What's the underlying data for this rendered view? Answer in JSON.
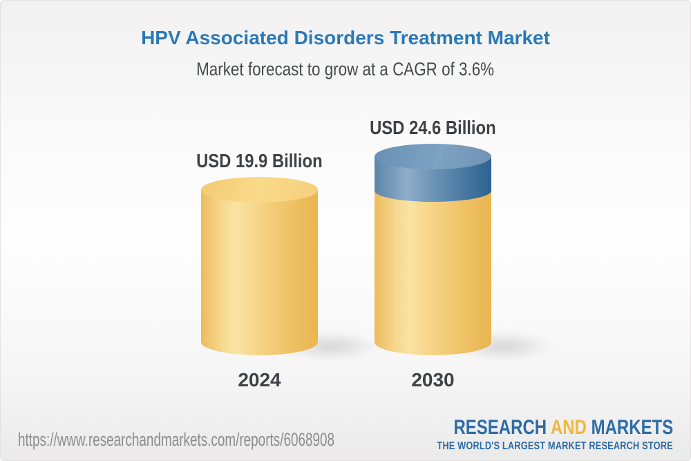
{
  "header": {
    "title": "HPV Associated Disorders Treatment Market",
    "subtitle": "Market forecast to grow at a CAGR of 3.6%"
  },
  "chart_data": {
    "type": "bar",
    "style": "3d-cylinder",
    "title": "HPV Associated Disorders Treatment Market",
    "subtitle": "Market forecast to grow at a CAGR of 3.6%",
    "cagr_percent": 3.6,
    "unit": "USD Billion",
    "categories": [
      "2024",
      "2030"
    ],
    "values": [
      19.9,
      24.6
    ],
    "bars": [
      {
        "year": "2024",
        "value": 19.9,
        "value_label": "USD 19.9 Billion",
        "segment_colors": [
          "#f3cd7a"
        ]
      },
      {
        "year": "2030",
        "value": 24.6,
        "value_label": "USD 24.6 Billion",
        "segment_colors": [
          "#f3cd7a",
          "#6b90b3"
        ],
        "growth_segment": "represents increase from 19.9 to 24.6"
      }
    ],
    "legend": null,
    "grid": false,
    "axes_shown": false
  },
  "footer": {
    "url": "https://www.researchandmarkets.com/reports/6068908",
    "logo": {
      "part1": "RESEARCH",
      "part2": "AND",
      "part3": "MARKETS",
      "tagline": "THE WORLD'S LARGEST MARKET RESEARCH STORE"
    }
  },
  "colors": {
    "title_blue": "#2979b6",
    "label_dark": "#3e4245",
    "subtitle_gray": "#46494c",
    "bar_yellow": "#f3cd7a",
    "bar_blue": "#6b90b3",
    "url_gray": "#8d8d8d",
    "logo_blue": "#2d6ca5",
    "logo_gold": "#f0b83d"
  }
}
